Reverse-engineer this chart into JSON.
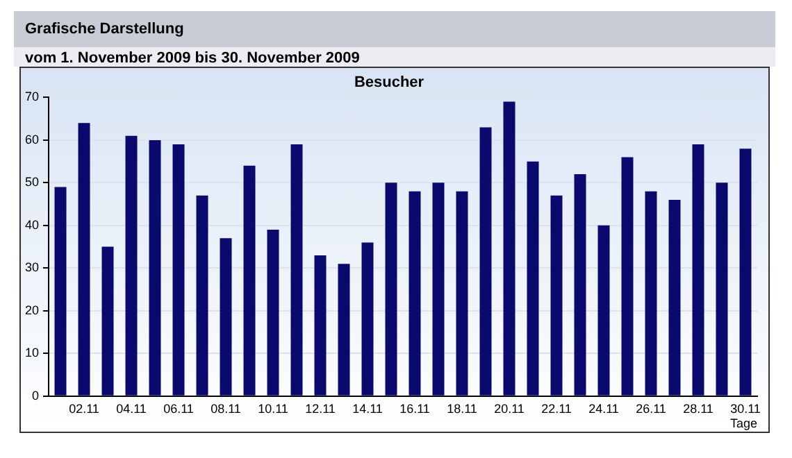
{
  "chart_data": {
    "type": "bar",
    "title": "Grafische Darstellung",
    "subtitle": "vom 1. November 2009  bis 30. November 2009",
    "annotations": [
      "Besucher"
    ],
    "xlabel": "Tage",
    "categories": [
      null,
      "02.11",
      null,
      "04.11",
      null,
      "06.11",
      null,
      "08.11",
      null,
      "10.11",
      null,
      "12.11",
      null,
      "14.11",
      null,
      "16.11",
      null,
      "18.11",
      null,
      "20.11",
      null,
      "22.11",
      null,
      "24.11",
      null,
      "26.11",
      null,
      "28.11",
      null,
      "30.11"
    ],
    "values": [
      49,
      64,
      35,
      61,
      60,
      59,
      47,
      37,
      54,
      39,
      59,
      33,
      31,
      36,
      50,
      48,
      50,
      48,
      63,
      69,
      55,
      47,
      52,
      40,
      56,
      48,
      46,
      59,
      50,
      58
    ],
    "color": "#0a0a6e",
    "ylim": [
      0,
      70
    ],
    "yticks": [
      0,
      10,
      20,
      30,
      40,
      50,
      60,
      70
    ],
    "grid": "y",
    "legend": false
  }
}
